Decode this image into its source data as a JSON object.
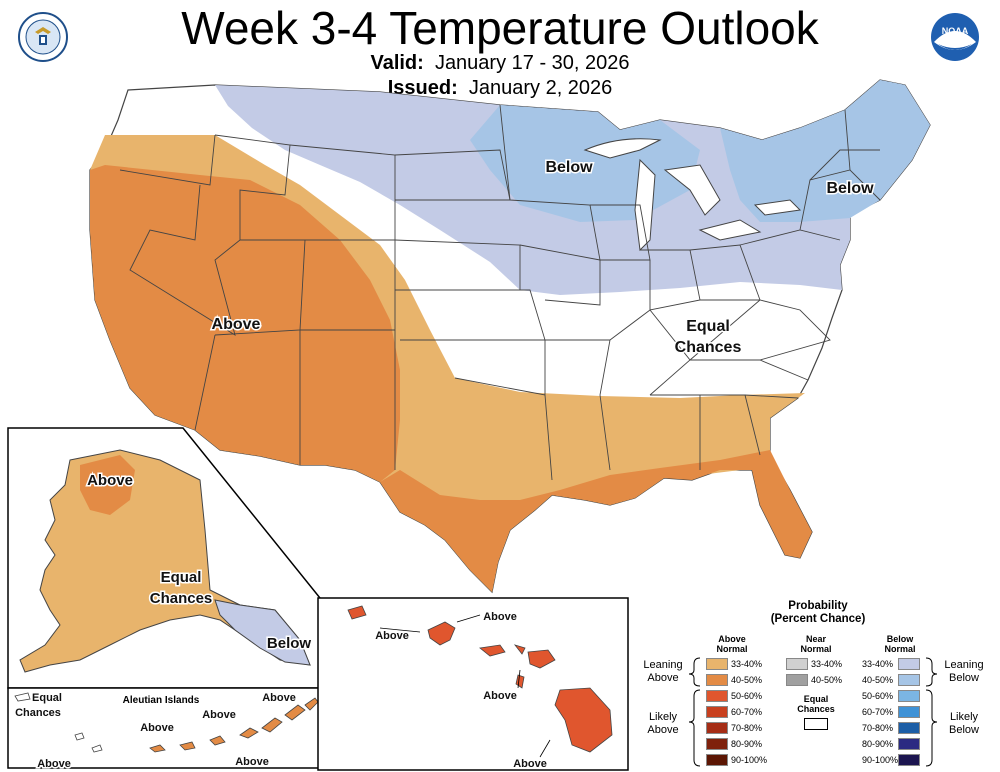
{
  "title": "Week 3-4 Temperature Outlook",
  "valid_label": "Valid:",
  "valid_text": "January 17 - 30, 2026",
  "issued_label": "Issued:",
  "issued_text": "January 2, 2026",
  "logos": {
    "left": "department-of-commerce-seal",
    "right": "noaa-logo",
    "noaa_text": "NOAA"
  },
  "map_labels": {
    "conus_below_north": "Below",
    "conus_below_northeast": "Below",
    "conus_above_west": "Above",
    "conus_equal": [
      "Equal",
      "Chances"
    ],
    "alaska_above": "Above",
    "alaska_equal": [
      "Equal",
      "Chances"
    ],
    "alaska_below": "Below",
    "aleutian_title": "Aleutian Islands",
    "aleutian_equal": [
      "Equal",
      "Chances"
    ],
    "aleutian_above": [
      "Above",
      "Above",
      "Above",
      "Above",
      "Above"
    ],
    "hawaii_above": [
      "Above",
      "Above",
      "Above",
      "Above"
    ]
  },
  "colors": {
    "above_33_40": "#e8b46c",
    "above_40_50": "#e38b45",
    "above_50_60": "#e0562e",
    "above_60_70": "#c8401f",
    "above_70_80": "#a52d16",
    "above_80_90": "#7f210c",
    "above_90_100": "#5c1604",
    "near_33_40": "#d0d0d0",
    "near_40_50": "#a0a0a0",
    "below_33_40": "#c3cbe6",
    "below_40_50": "#a6c5e6",
    "below_50_60": "#7bb5e3",
    "below_60_70": "#3f92d6",
    "below_70_80": "#1c5ea6",
    "below_80_90": "#2b2a82",
    "below_90_100": "#1c1550",
    "border": "#444444"
  },
  "legend": {
    "title": "Probability",
    "subtitle": "(Percent Chance)",
    "above_header": [
      "Above",
      "Normal"
    ],
    "near_header": [
      "Near",
      "Normal"
    ],
    "below_header": [
      "Below",
      "Normal"
    ],
    "above_pcts": [
      "33-40%",
      "40-50%",
      "50-60%",
      "60-70%",
      "70-80%",
      "80-90%",
      "90-100%"
    ],
    "near_pcts": [
      "33-40%",
      "40-50%"
    ],
    "below_pcts": [
      "33-40%",
      "40-50%",
      "50-60%",
      "60-70%",
      "70-80%",
      "80-90%",
      "90-100%"
    ],
    "equal_label": [
      "Equal",
      "Chances"
    ],
    "leaning_above": [
      "Leaning",
      "Above"
    ],
    "likely_above": [
      "Likely",
      "Above"
    ],
    "leaning_below": [
      "Leaning",
      "Below"
    ],
    "likely_below": [
      "Likely",
      "Below"
    ]
  }
}
